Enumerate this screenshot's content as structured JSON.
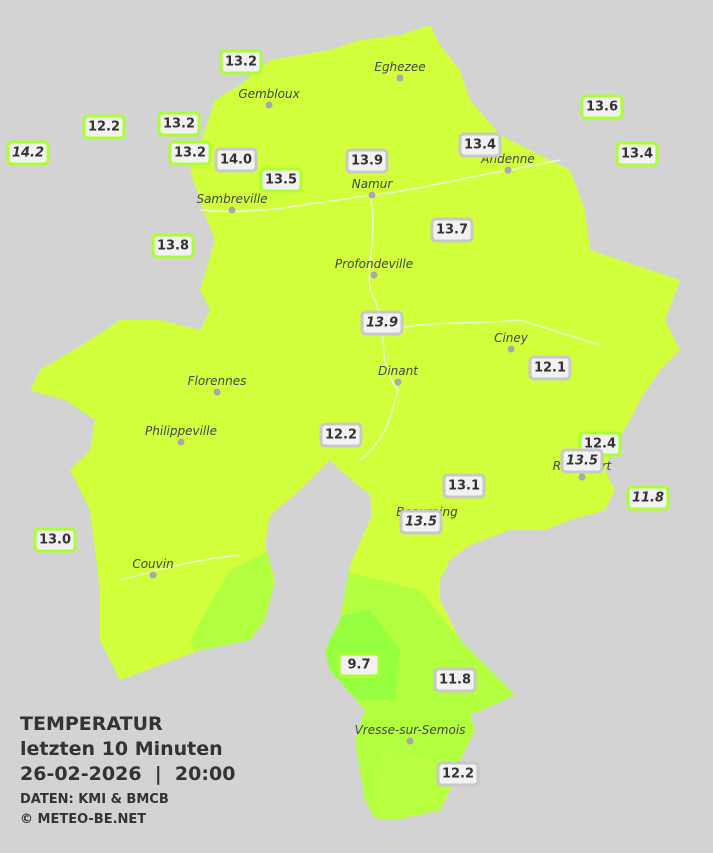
{
  "legend": {
    "title": "TEMPERATUR",
    "subtitle": "letzten 10 Minuten",
    "datetime": "26-02-2026  |  20:00",
    "source": "DATEN: KMI & BMCB",
    "copyright": "© METEO-BE.NET"
  },
  "cities": [
    {
      "name": "Eghezee"
    },
    {
      "name": "Gembloux"
    },
    {
      "name": "Andenne"
    },
    {
      "name": "Namur"
    },
    {
      "name": "Sambreville"
    },
    {
      "name": "Profondeville"
    },
    {
      "name": "Ciney"
    },
    {
      "name": "Dinant"
    },
    {
      "name": "Florennes"
    },
    {
      "name": "Philippeville"
    },
    {
      "name": "Rochefort"
    },
    {
      "name": "Beauraing"
    },
    {
      "name": "Couvin"
    },
    {
      "name": "Vresse-sur-Semois"
    }
  ],
  "stations": [
    {
      "value": "13.2",
      "italic": false
    },
    {
      "value": "12.2",
      "italic": false
    },
    {
      "value": "13.2",
      "italic": false
    },
    {
      "value": "14.2",
      "italic": true
    },
    {
      "value": "13.2",
      "italic": false
    },
    {
      "value": "14.0",
      "italic": false
    },
    {
      "value": "13.5",
      "italic": false
    },
    {
      "value": "13.9",
      "italic": false
    },
    {
      "value": "13.4",
      "italic": false
    },
    {
      "value": "13.6",
      "italic": false
    },
    {
      "value": "13.4",
      "italic": false
    },
    {
      "value": "13.8",
      "italic": false
    },
    {
      "value": "13.7",
      "italic": false
    },
    {
      "value": "13.9",
      "italic": true
    },
    {
      "value": "12.1",
      "italic": false
    },
    {
      "value": "12.2",
      "italic": false
    },
    {
      "value": "12.4",
      "italic": false
    },
    {
      "value": "13.5",
      "italic": true
    },
    {
      "value": "13.1",
      "italic": false
    },
    {
      "value": "11.8",
      "italic": true
    },
    {
      "value": "13.5",
      "italic": true
    },
    {
      "value": "13.0",
      "italic": false
    },
    {
      "value": "9.7",
      "italic": false
    },
    {
      "value": "11.8",
      "italic": false
    },
    {
      "value": "12.2",
      "italic": false
    }
  ]
}
